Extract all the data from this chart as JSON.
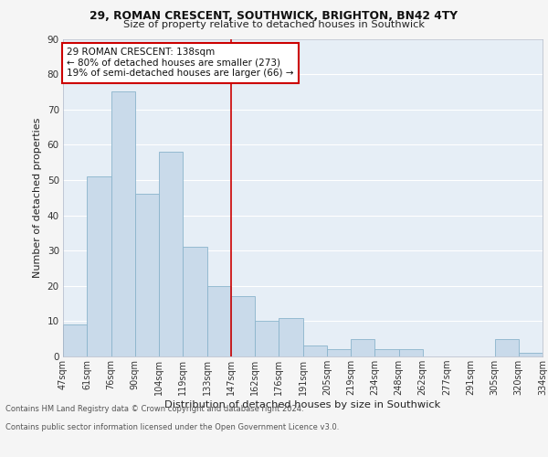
{
  "title1": "29, ROMAN CRESCENT, SOUTHWICK, BRIGHTON, BN42 4TY",
  "title2": "Size of property relative to detached houses in Southwick",
  "xlabel": "Distribution of detached houses by size in Southwick",
  "ylabel": "Number of detached properties",
  "categories": [
    "47sqm",
    "61sqm",
    "76sqm",
    "90sqm",
    "104sqm",
    "119sqm",
    "133sqm",
    "147sqm",
    "162sqm",
    "176sqm",
    "191sqm",
    "205sqm",
    "219sqm",
    "234sqm",
    "248sqm",
    "262sqm",
    "277sqm",
    "291sqm",
    "305sqm",
    "320sqm",
    "334sqm"
  ],
  "values": [
    9,
    51,
    75,
    46,
    58,
    31,
    20,
    17,
    10,
    11,
    3,
    2,
    5,
    2,
    2,
    0,
    0,
    0,
    5,
    1,
    0
  ],
  "bar_color": "#c9daea",
  "bar_edge_color": "#8ab4cc",
  "background_color": "#e6eef6",
  "grid_color": "#ffffff",
  "annotation_line_color": "#cc0000",
  "annotation_text_line1": "29 ROMAN CRESCENT: 138sqm",
  "annotation_text_line2": "← 80% of detached houses are smaller (273)",
  "annotation_text_line3": "19% of semi-detached houses are larger (66) →",
  "footer_line1": "Contains HM Land Registry data © Crown copyright and database right 2024.",
  "footer_line2": "Contains public sector information licensed under the Open Government Licence v3.0.",
  "ylim": [
    0,
    90
  ],
  "yticks": [
    0,
    10,
    20,
    30,
    40,
    50,
    60,
    70,
    80,
    90
  ],
  "fig_bg": "#f5f5f5"
}
